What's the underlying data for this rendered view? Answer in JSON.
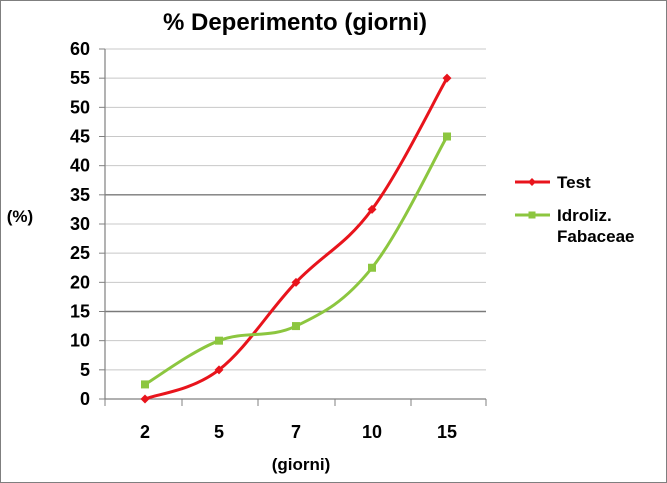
{
  "chart_data": {
    "type": "line",
    "title": "% Deperimento (giorni)",
    "xlabel": "(giorni)",
    "ylabel": "(%)",
    "categories": [
      "2",
      "5",
      "7",
      "10",
      "15"
    ],
    "ylim": [
      0,
      60
    ],
    "yticks": [
      0,
      5,
      10,
      15,
      20,
      25,
      30,
      35,
      40,
      45,
      50,
      55,
      60
    ],
    "grid": true,
    "legend_position": "right",
    "series": [
      {
        "name": "Test",
        "color": "#e8141c",
        "marker": "diamond",
        "values": [
          0,
          5,
          20,
          32.5,
          55
        ]
      },
      {
        "name": "Idroliz. Fabaceae",
        "color": "#8cc63f",
        "marker": "square",
        "values": [
          2.5,
          10,
          12.5,
          22.5,
          45
        ]
      }
    ]
  }
}
